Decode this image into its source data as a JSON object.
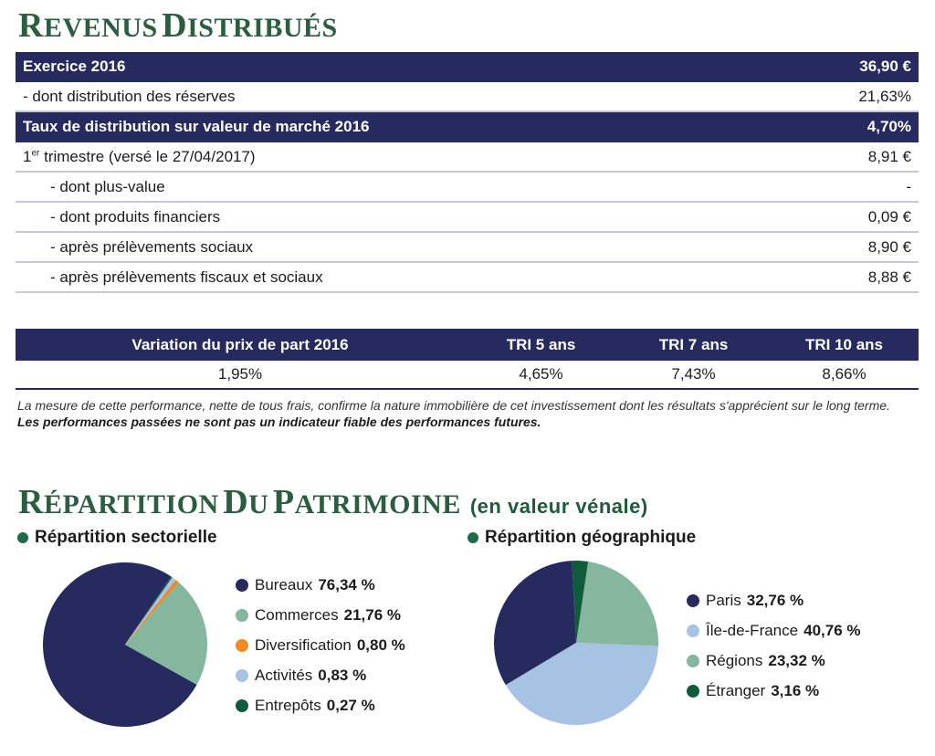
{
  "revenus": {
    "title": "Revenus distribués",
    "rows": [
      {
        "label": "Exercice 2016",
        "value": "36,90 €",
        "dark": true,
        "indent": false
      },
      {
        "label": "- dont distribution des réserves",
        "value": "21,63%",
        "dark": false,
        "indent": false
      },
      {
        "label": "Taux de distribution sur valeur de marché 2016",
        "value": "4,70%",
        "dark": true,
        "indent": false
      },
      {
        "label": "trimestre (versé le 27/04/2017)",
        "value": "8,91 €",
        "dark": false,
        "indent": false
      },
      {
        "label": "- dont plus-value",
        "value": "-",
        "dark": false,
        "indent": true
      },
      {
        "label": "- dont produits financiers",
        "value": "0,09 €",
        "dark": false,
        "indent": true
      },
      {
        "label": "- après prélèvements sociaux",
        "value": "8,90 €",
        "dark": false,
        "indent": true
      },
      {
        "label": "- après prélèvements fiscaux et sociaux",
        "value": "8,88 €",
        "dark": false,
        "indent": true
      }
    ],
    "trimestre_num": "1",
    "trimestre_sup": "er"
  },
  "performance": {
    "headers": [
      "Variation du prix de part 2016",
      "TRI 5 ans",
      "TRI 7 ans",
      "TRI 10 ans"
    ],
    "values": [
      "1,95%",
      "4,65%",
      "7,43%",
      "8,66%"
    ],
    "note": "La mesure de cette performance, nette de tous frais, confirme la nature immobilière de cet investissement dont les résultats s'apprécient sur le long terme.",
    "warning": "Les performances passées ne sont pas un indicateur fiable des performances futures."
  },
  "patrimoine": {
    "title": "Répartition du patrimoine",
    "subtitle": "(en valeur vénale)",
    "sectorielle_label": "Répartition sectorielle",
    "geographique_label": "Répartition géographique",
    "bullet_color": "#1f6b45"
  },
  "chart_data": [
    {
      "type": "pie",
      "title": "Répartition sectorielle",
      "categories": [
        "Bureaux",
        "Commerces",
        "Diversification",
        "Activités",
        "Entrepôts"
      ],
      "values": [
        76.34,
        21.76,
        0.8,
        0.83,
        0.27
      ],
      "labels": [
        "76,34 %",
        "21,76 %",
        "0,80 %",
        "0,83 %",
        "0,27 %"
      ],
      "colors": [
        "#262a5e",
        "#85b79e",
        "#f08a22",
        "#a7c3e4",
        "#0f5c3c"
      ]
    },
    {
      "type": "pie",
      "title": "Répartition géographique",
      "categories": [
        "Paris",
        "Île-de-France",
        "Régions",
        "Étranger"
      ],
      "values": [
        32.76,
        40.76,
        23.32,
        3.16
      ],
      "labels": [
        "32,76 %",
        "40,76 %",
        "23,32 %",
        "3,16 %"
      ],
      "colors": [
        "#262a5e",
        "#a7c3e4",
        "#85b79e",
        "#0f5c3c"
      ]
    }
  ]
}
